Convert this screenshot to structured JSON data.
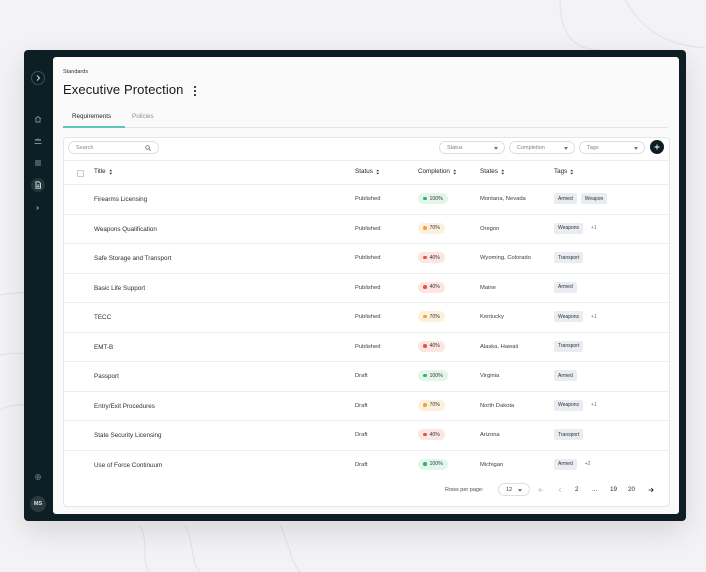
{
  "colors": {
    "frame": "#0d1f25",
    "accent": "#58c6b8",
    "pill_100_bg": "#e3f6ec",
    "pill_100_dot": "#2fb36b",
    "pill_70_bg": "#fdf0dc",
    "pill_70_dot": "#f0a23b",
    "pill_40_bg": "#fde5e1",
    "pill_40_dot": "#e2563e"
  },
  "sidebar": {
    "icons": [
      "chevron-right-icon",
      "home-icon",
      "team-icon",
      "list-icon",
      "document-icon",
      "arrow-right-icon",
      "settings-icon"
    ],
    "avatar_initials": "MS"
  },
  "header": {
    "breadcrumb": "Standards",
    "title": "Executive Protection"
  },
  "tabs": [
    {
      "label": "Requirements",
      "active": true
    },
    {
      "label": "Policies",
      "active": false
    }
  ],
  "toolbar": {
    "search_placeholder": "Search",
    "filters": [
      {
        "label": "Status"
      },
      {
        "label": "Completion"
      },
      {
        "label": "Tags"
      }
    ]
  },
  "table": {
    "columns": [
      "Title",
      "Status",
      "Completion",
      "States",
      "Tags"
    ],
    "rows": [
      {
        "title": "Firearms Licensing",
        "status": "Published",
        "completion": "100%",
        "level": "100",
        "states": "Montana, Nevada",
        "tags": [
          "Armed",
          "Weapon"
        ],
        "more": ""
      },
      {
        "title": "Weapons Qualification",
        "status": "Published",
        "completion": "70%",
        "level": "70",
        "states": "Oregon",
        "tags": [
          "Weapons"
        ],
        "more": "+1"
      },
      {
        "title": "Safe Storage and Transport",
        "status": "Published",
        "completion": "40%",
        "level": "40",
        "states": "Wyoming, Colorado",
        "tags": [
          "Transport"
        ],
        "more": ""
      },
      {
        "title": "Basic Life Support",
        "status": "Published",
        "completion": "40%",
        "level": "40",
        "states": "Maine",
        "tags": [
          "Armed"
        ],
        "more": ""
      },
      {
        "title": "TECC",
        "status": "Published",
        "completion": "70%",
        "level": "70",
        "states": "Kentucky",
        "tags": [
          "Weapons"
        ],
        "more": "+1"
      },
      {
        "title": "EMT-B",
        "status": "Published",
        "completion": "40%",
        "level": "40",
        "states": "Alaska, Hawaii",
        "tags": [
          "Transport"
        ],
        "more": ""
      },
      {
        "title": "Passport",
        "status": "Draft",
        "completion": "100%",
        "level": "100",
        "states": "Virginia",
        "tags": [
          "Armed"
        ],
        "more": ""
      },
      {
        "title": "Entry/Exit Procedures",
        "status": "Draft",
        "completion": "70%",
        "level": "70",
        "states": "North Dakota",
        "tags": [
          "Weapons"
        ],
        "more": "+1"
      },
      {
        "title": "State Security Licensing",
        "status": "Draft",
        "completion": "40%",
        "level": "40",
        "states": "Arizona",
        "tags": [
          "Transport"
        ],
        "more": ""
      },
      {
        "title": "Use of Force Continuum",
        "status": "Draft",
        "completion": "100%",
        "level": "100",
        "states": "Michigan",
        "tags": [
          "Armed"
        ],
        "more": "+2"
      }
    ]
  },
  "pagination": {
    "rows_per_page_label": "Rows per page:",
    "rows_per_page": "12",
    "pages": [
      "2",
      "...",
      "19",
      "20"
    ]
  }
}
